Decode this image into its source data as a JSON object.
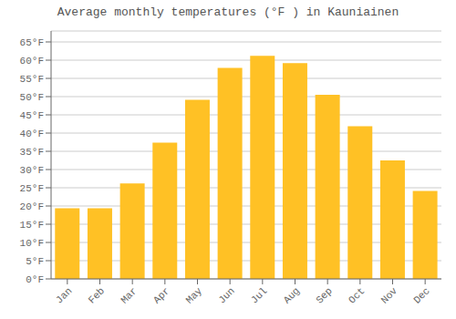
{
  "chart_data": {
    "type": "bar",
    "title": "Average monthly temperatures (°F ) in Kauniainen",
    "categories": [
      "Jan",
      "Feb",
      "Mar",
      "Apr",
      "May",
      "Jun",
      "Jul",
      "Aug",
      "Sep",
      "Oct",
      "Nov",
      "Dec"
    ],
    "values": [
      19.4,
      19.4,
      26.2,
      37.4,
      49.1,
      57.9,
      61.2,
      59.2,
      50.5,
      41.9,
      32.5,
      24.1
    ],
    "color": "#FFC125",
    "ylim": [
      0,
      68
    ],
    "yticks": [
      {
        "value": 0,
        "label": "0°F"
      },
      {
        "value": 5,
        "label": "5°F"
      },
      {
        "value": 10,
        "label": "10°F"
      },
      {
        "value": 15,
        "label": "15°F"
      },
      {
        "value": 20,
        "label": "20°F"
      },
      {
        "value": 25,
        "label": "25°F"
      },
      {
        "value": 30,
        "label": "30°F"
      },
      {
        "value": 35,
        "label": "35°F"
      },
      {
        "value": 40,
        "label": "40°F"
      },
      {
        "value": 45,
        "label": "45°F"
      },
      {
        "value": 50,
        "label": "50°F"
      },
      {
        "value": 55,
        "label": "55°F"
      },
      {
        "value": 60,
        "label": "60°F"
      },
      {
        "value": 65,
        "label": "65°F"
      }
    ],
    "grid": true
  }
}
